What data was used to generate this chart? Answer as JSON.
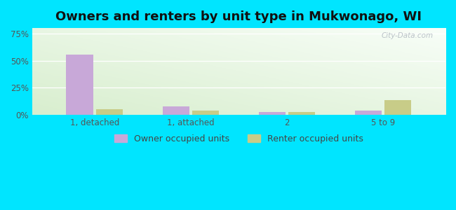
{
  "title": "Owners and renters by unit type in Mukwonago, WI",
  "categories": [
    "1, detached",
    "1, attached",
    "2",
    "5 to 9"
  ],
  "owner_values": [
    55.5,
    8.0,
    3.0,
    4.0
  ],
  "renter_values": [
    5.0,
    4.0,
    3.0,
    14.0
  ],
  "owner_color": "#c8a8d8",
  "renter_color": "#c8cc88",
  "yticks": [
    0,
    25,
    50,
    75
  ],
  "ytick_labels": [
    "0%",
    "25%",
    "50%",
    "75%"
  ],
  "ylim": [
    0,
    80
  ],
  "bg_top_left": "#d8eece",
  "bg_bottom_right": "#f0faf8",
  "outer_bg": "#00e5ff",
  "title_fontsize": 13,
  "legend_owner": "Owner occupied units",
  "legend_renter": "Renter occupied units",
  "watermark": "City-Data.com",
  "bar_width": 0.28
}
